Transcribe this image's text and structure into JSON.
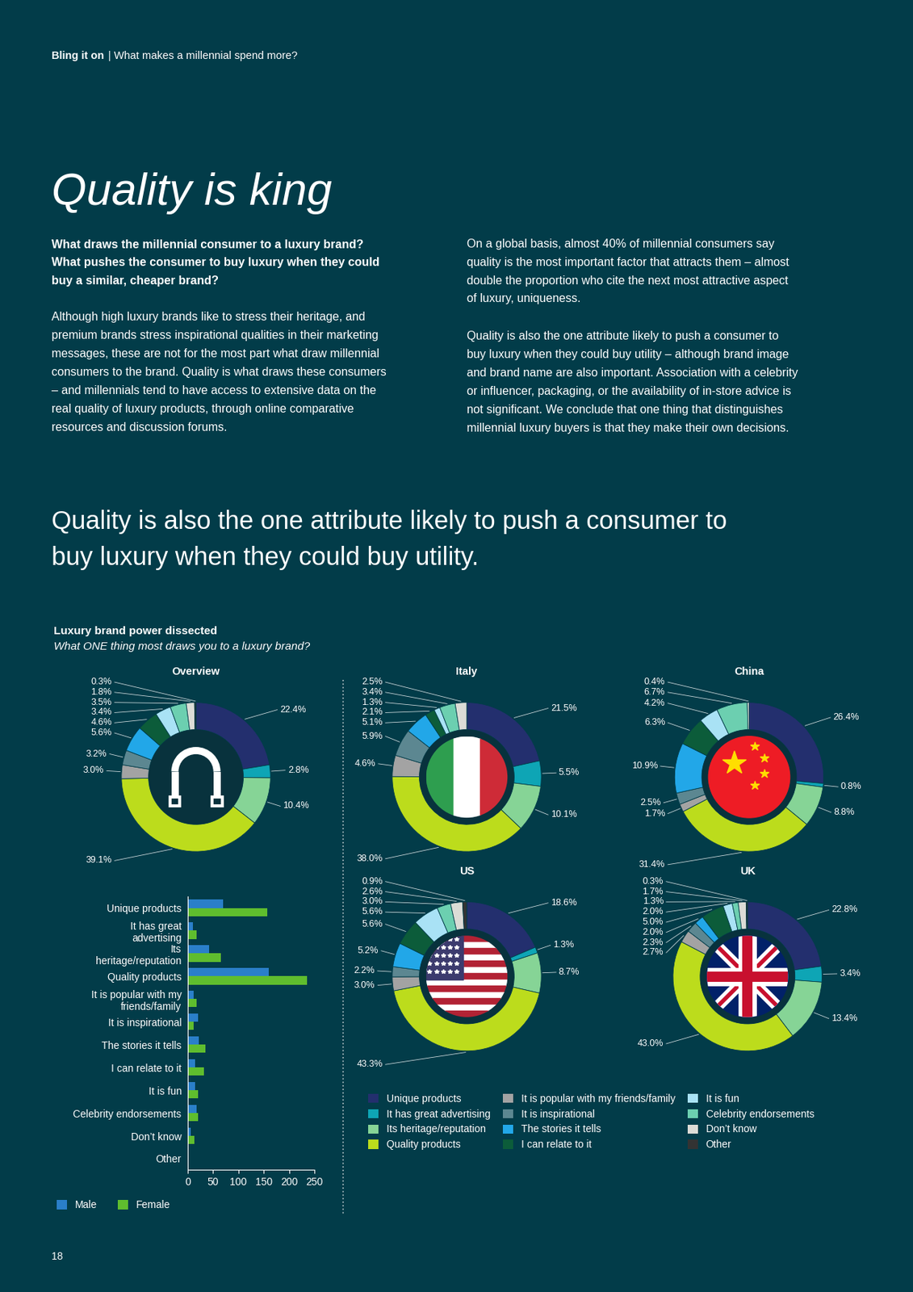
{
  "header": {
    "section": "Bling it on",
    "text": "| What makes a millennial spend more?"
  },
  "title": "Quality is king",
  "intro_question": [
    "What draws the millennial consumer to a luxury brand?",
    "What pushes the consumer to buy luxury when they could",
    "buy a similar, cheaper brand?"
  ],
  "body_left": [
    "Although high luxury brands like to stress their heritage, and",
    "premium brands stress inspirational qualities in their marketing",
    "messages, these are not for the most part what draw millennial",
    "consumers to the brand. Quality is what draws these consumers",
    "– and millennials tend to have access to extensive data on the",
    "real quality of luxury products, through online comparative",
    "resources and discussion forums."
  ],
  "body_right": [
    [
      "On a global basis, almost 40% of millennial consumers say",
      "quality is the most important factor that attracts them – almost",
      "double the proportion who cite the next most attractive aspect",
      "of luxury, uniqueness."
    ],
    [
      "Quality is also the one attribute likely to push a consumer to",
      "buy luxury when they could buy utility – although brand image",
      "and brand name are also important. Association with a celebrity",
      "or influencer, packaging, or the availability of in-store advice is",
      "not significant. We conclude that one thing that distinguishes",
      "millennial luxury buyers is that they make their own decisions."
    ]
  ],
  "pull_quote": [
    "Quality is also the one attribute likely to push a consumer to",
    "buy luxury when they could buy utility."
  ],
  "chart_header": {
    "title": "Luxury brand power dissected",
    "subtitle": "What ONE thing most draws you to a luxury brand?"
  },
  "donut_legend": {
    "categories": [
      "Unique products",
      "It has great advertising",
      "Its heritage/reputation",
      "Quality products",
      "It is popular with my friends/family",
      "It is inspirational",
      "The stories it tells",
      "I can relate to it",
      "It is fun",
      "Celebrity endorsements",
      "Don’t know",
      "Other"
    ],
    "colors": [
      "#232f6e",
      "#0ea5b5",
      "#86d496",
      "#bcdc1c",
      "#a3a3a3",
      "#5c8791",
      "#22a7e8",
      "#0c5c3a",
      "#a9e2f5",
      "#6ccfb0",
      "#dcdcd6",
      "#333333"
    ]
  },
  "chart_data": [
    {
      "type": "bar",
      "orientation": "horizontal",
      "categories": [
        "Unique products",
        "It has great advertising",
        "Its heritage/reputation",
        "Quality products",
        "It is popular with my friends/family",
        "It is inspirational",
        "The stories it tells",
        "I can relate to it",
        "It is fun",
        "Celebrity endorsements",
        "Don’t know",
        "Other"
      ],
      "series": [
        {
          "name": "Male",
          "color": "#2a7fc9",
          "values": [
            70,
            10,
            42,
            160,
            12,
            20,
            22,
            15,
            14,
            17,
            6,
            1
          ]
        },
        {
          "name": "Female",
          "color": "#5fbd2e",
          "values": [
            157,
            18,
            65,
            235,
            17,
            12,
            35,
            32,
            20,
            20,
            13,
            2
          ]
        }
      ],
      "xlim": [
        0,
        250
      ],
      "xticks": [
        0,
        50,
        100,
        150,
        200,
        250
      ],
      "legend": "lower left"
    },
    {
      "type": "donut",
      "title": "Overview",
      "values": [
        22.4,
        2.8,
        10.4,
        39.1,
        3.0,
        3.2,
        5.6,
        4.6,
        3.4,
        3.5,
        1.8,
        0.3
      ],
      "value_labels": [
        "22.4%",
        "2.8%",
        "10.4%",
        "39.1%",
        "3.0%",
        "3.2%",
        "5.6%",
        "4.6%",
        "3.4%",
        "3.5%",
        "1.8%",
        "0.3%"
      ]
    },
    {
      "type": "donut",
      "title": "Italy",
      "values": [
        21.5,
        5.5,
        10.1,
        38.0,
        4.6,
        5.9,
        5.1,
        2.1,
        1.3,
        3.4,
        2.5,
        null
      ],
      "value_labels": [
        "21.5%",
        "5.5%",
        "10.1%",
        "38.0%",
        "4.6%",
        "5.9%",
        "5.1%",
        "2.1%",
        "1.3%",
        "3.4%",
        "2.5%",
        null
      ]
    },
    {
      "type": "donut",
      "title": "China",
      "values": [
        26.4,
        0.8,
        8.8,
        31.4,
        1.7,
        2.5,
        10.9,
        6.3,
        4.2,
        6.7,
        0.4,
        null
      ],
      "value_labels": [
        "26.4%",
        "0.8%",
        "8.8%",
        "31.4%",
        "1.7%",
        "2.5%",
        "10.9%",
        "6.3%",
        "4.2%",
        "6.7%",
        "0.4%",
        null
      ]
    },
    {
      "type": "donut",
      "title": "US",
      "values": [
        18.6,
        1.3,
        8.7,
        43.3,
        3.0,
        2.2,
        5.2,
        5.6,
        5.6,
        3.0,
        2.6,
        0.9
      ],
      "value_labels": [
        "18.6%",
        "1.3%",
        "8.7%",
        "43.3%",
        "3.0%",
        "2.2%",
        "5.2%",
        "5.6%",
        "5.6%",
        "3.0%",
        "2.6%",
        "0.9%"
      ]
    },
    {
      "type": "donut",
      "title": "UK",
      "values": [
        22.8,
        3.4,
        13.4,
        43.0,
        2.7,
        2.3,
        2.0,
        5.0,
        2.0,
        1.3,
        1.7,
        0.3
      ],
      "value_labels": [
        "22.8%",
        "3.4%",
        "13.4%",
        "43.0%",
        "2.7%",
        "2.3%",
        "2.0%",
        "5.0%",
        "2.0%",
        "1.3%",
        "1.7%",
        "0.3%"
      ]
    }
  ],
  "page_number": "18"
}
